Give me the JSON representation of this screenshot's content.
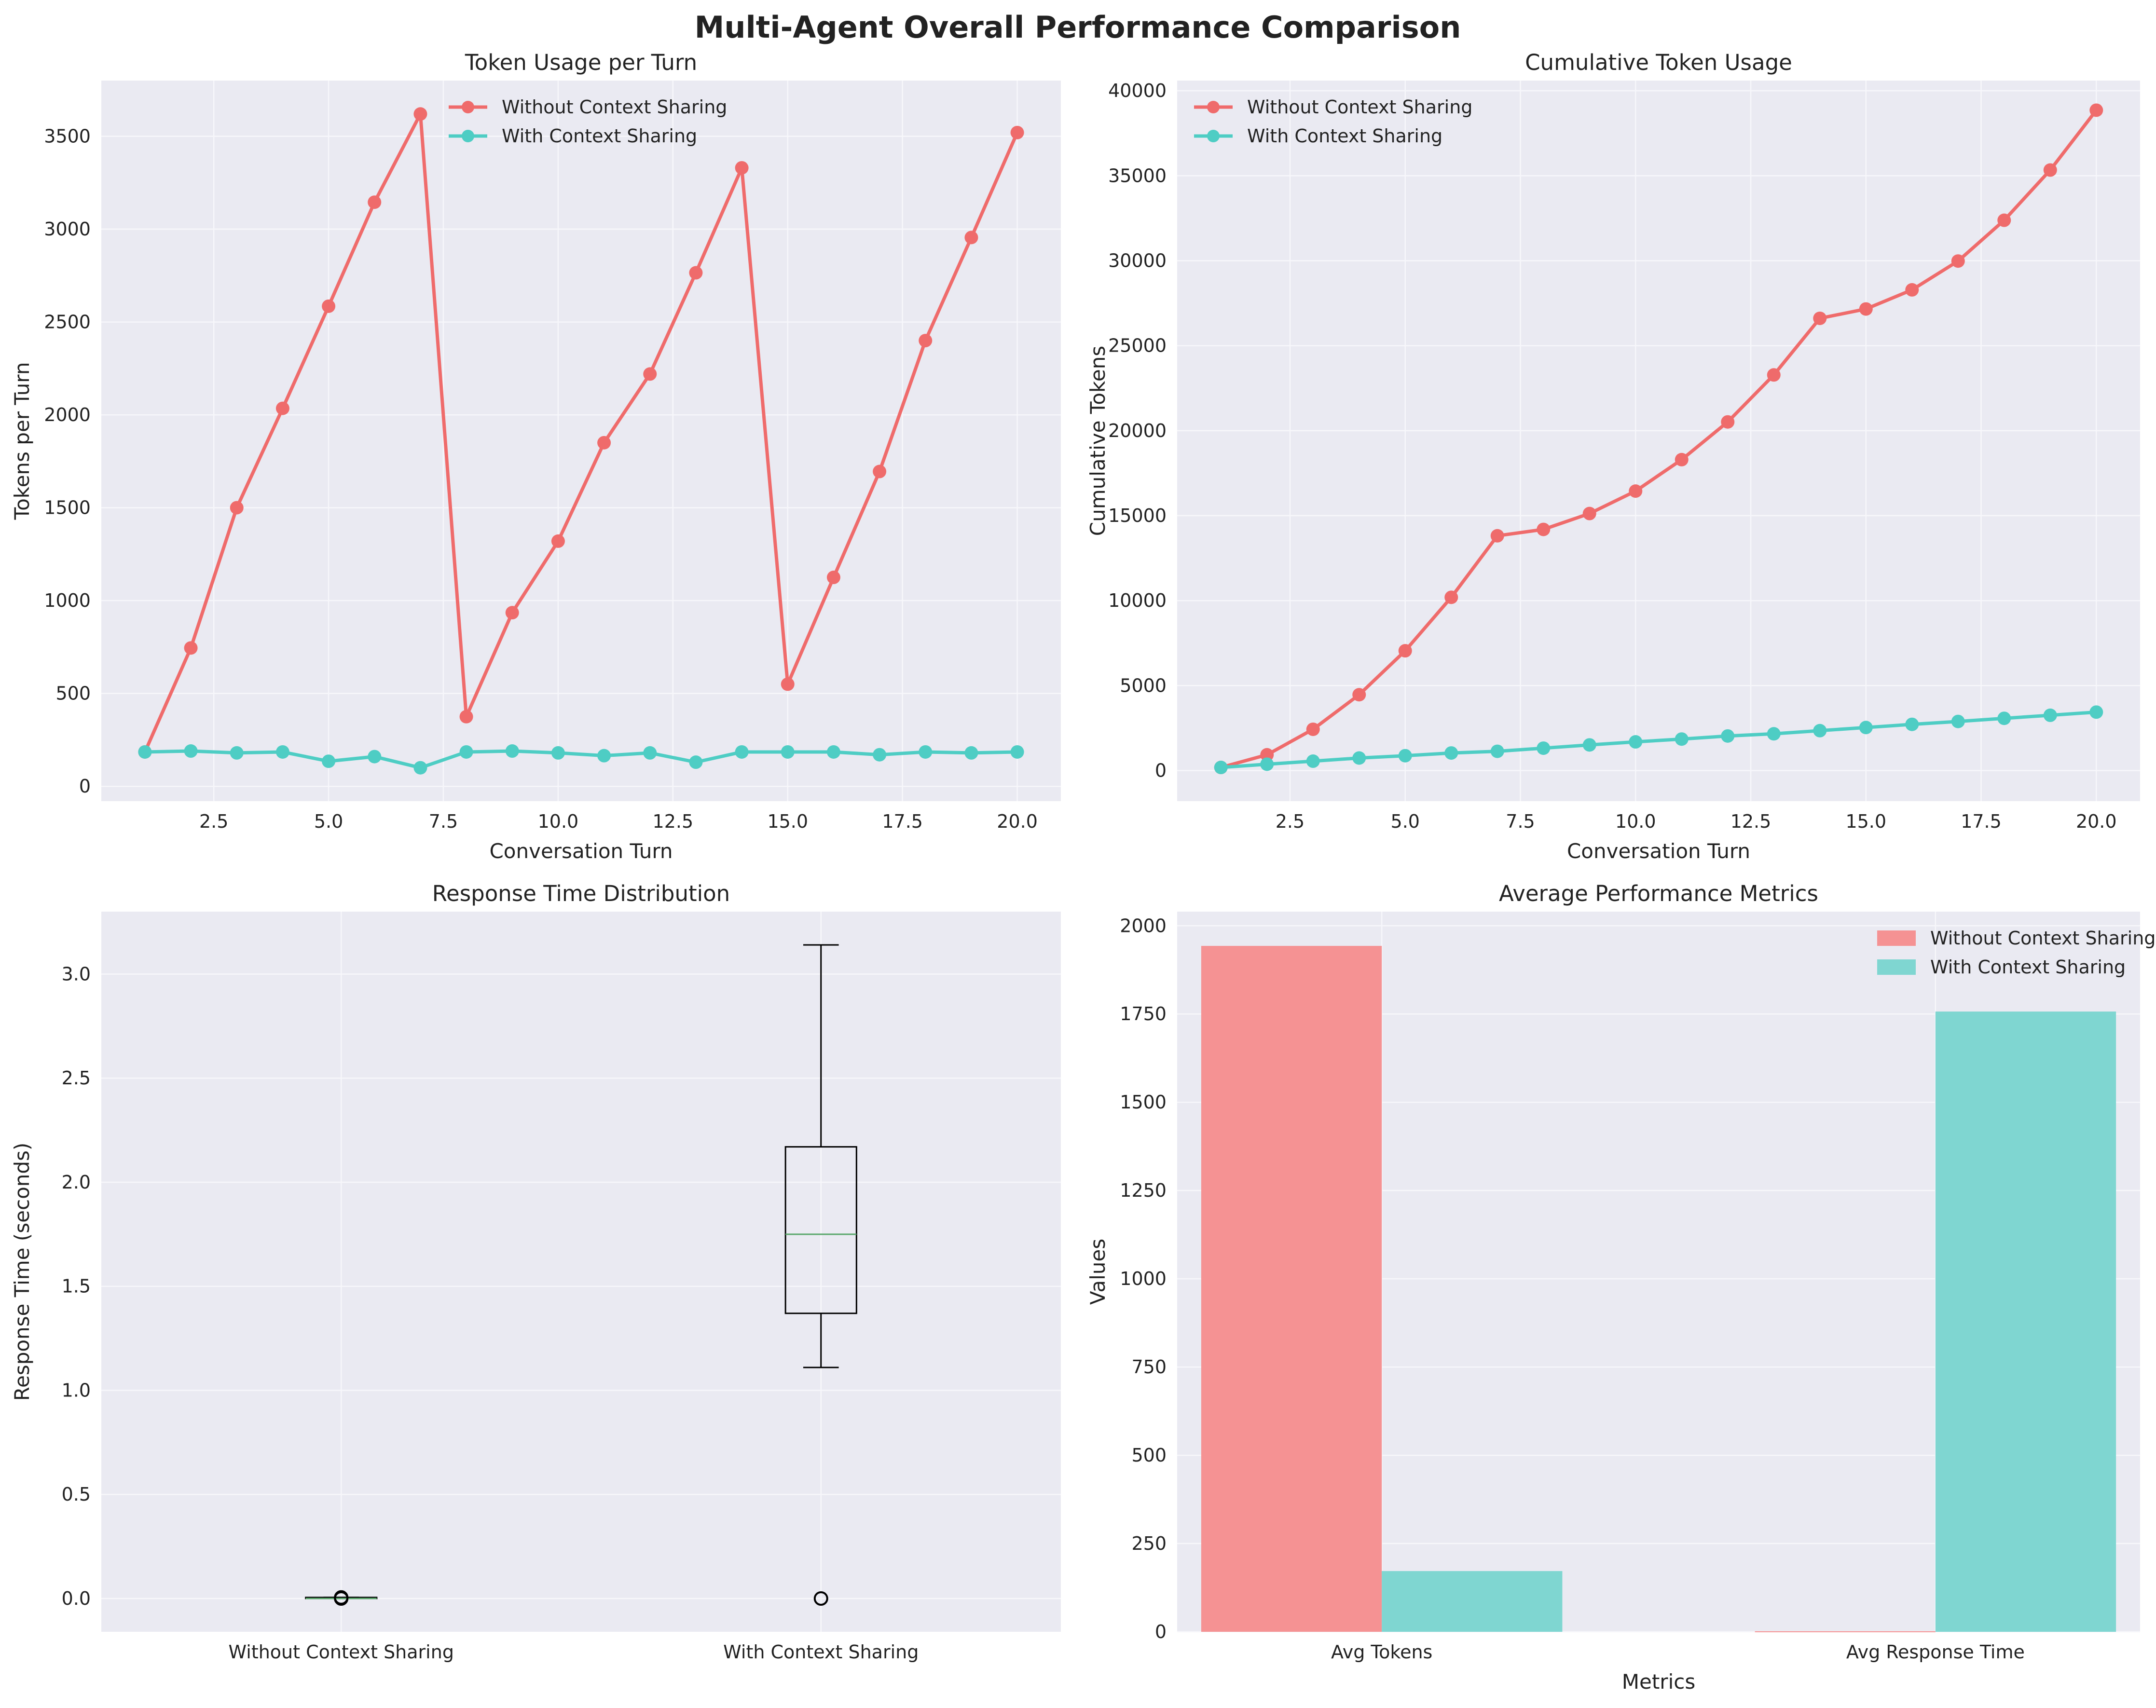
{
  "figure": {
    "title": "Multi-Agent Overall Performance Comparison",
    "colors": {
      "without": "#ef6b6b",
      "with": "#4ecdc4",
      "bar_without": "#f59293",
      "bar_with": "#7fd6d1",
      "axes_bg": "#eaeaf2",
      "grid": "#f7f7fb",
      "median": "#5aa86b"
    }
  },
  "chart_data": [
    {
      "type": "line",
      "title": "Token Usage per Turn",
      "xlabel": "Conversation Turn",
      "ylabel": "Tokens per Turn",
      "xlim": [
        0.05,
        20.95
      ],
      "ylim": [
        -80,
        3800
      ],
      "xticks": [
        2.5,
        5.0,
        7.5,
        10.0,
        12.5,
        15.0,
        17.5,
        20.0
      ],
      "xtick_labels": [
        "2.5",
        "5.0",
        "7.5",
        "10.0",
        "12.5",
        "15.0",
        "17.5",
        "20.0"
      ],
      "yticks": [
        0,
        500,
        1000,
        1500,
        2000,
        2500,
        3000,
        3500
      ],
      "ytick_labels": [
        "0",
        "500",
        "1000",
        "1500",
        "2000",
        "2500",
        "3000",
        "3500"
      ],
      "legend_position": "upper-center",
      "grid": true,
      "x": [
        1,
        2,
        3,
        4,
        5,
        6,
        7,
        8,
        9,
        10,
        11,
        12,
        13,
        14,
        15,
        16,
        17,
        18,
        19,
        20
      ],
      "series": [
        {
          "name": "Without Context Sharing",
          "values": [
            185,
            745,
            1500,
            2035,
            2585,
            3145,
            3620,
            375,
            935,
            1320,
            1850,
            2220,
            2765,
            3330,
            550,
            1125,
            1695,
            2400,
            2955,
            3520
          ]
        },
        {
          "name": "With Context Sharing",
          "values": [
            185,
            190,
            180,
            185,
            135,
            160,
            100,
            185,
            190,
            180,
            165,
            180,
            130,
            185,
            185,
            185,
            170,
            185,
            180,
            185
          ]
        }
      ]
    },
    {
      "type": "line",
      "title": "Cumulative Token Usage",
      "xlabel": "Conversation Turn",
      "ylabel": "Cumulative Tokens",
      "xlim": [
        0.05,
        20.95
      ],
      "ylim": [
        -1800,
        40600
      ],
      "xticks": [
        2.5,
        5.0,
        7.5,
        10.0,
        12.5,
        15.0,
        17.5,
        20.0
      ],
      "xtick_labels": [
        "2.5",
        "5.0",
        "7.5",
        "10.0",
        "12.5",
        "15.0",
        "17.5",
        "20.0"
      ],
      "yticks": [
        0,
        5000,
        10000,
        15000,
        20000,
        25000,
        30000,
        35000,
        40000
      ],
      "ytick_labels": [
        "0",
        "5000",
        "10000",
        "15000",
        "20000",
        "25000",
        "30000",
        "35000",
        "40000"
      ],
      "legend_position": "upper-left",
      "grid": true,
      "x": [
        1,
        2,
        3,
        4,
        5,
        6,
        7,
        8,
        9,
        10,
        11,
        12,
        13,
        14,
        15,
        16,
        17,
        18,
        19,
        20
      ],
      "series": [
        {
          "name": "Without Context Sharing",
          "values": [
            185,
            930,
            2430,
            4465,
            7050,
            10195,
            13815,
            14190,
            15125,
            16445,
            18295,
            20515,
            23280,
            26610,
            27160,
            28285,
            29980,
            32380,
            35335,
            38855
          ]
        },
        {
          "name": "With Context Sharing",
          "values": [
            185,
            375,
            555,
            740,
            875,
            1035,
            1135,
            1320,
            1510,
            1690,
            1855,
            2035,
            2165,
            2350,
            2535,
            2720,
            2890,
            3075,
            3255,
            3440
          ]
        }
      ]
    },
    {
      "type": "box",
      "title": "Response Time Distribution",
      "xlabel": "",
      "ylabel": "Response Time (seconds)",
      "ylim": [
        -0.16,
        3.3
      ],
      "yticks": [
        0.0,
        0.5,
        1.0,
        1.5,
        2.0,
        2.5,
        3.0
      ],
      "ytick_labels": [
        "0.0",
        "0.5",
        "1.0",
        "1.5",
        "2.0",
        "2.5",
        "3.0"
      ],
      "grid": true,
      "categories": [
        "Without Context Sharing",
        "With Context Sharing"
      ],
      "boxes": [
        {
          "whisker_low": 0.0,
          "q1": 0.0,
          "median": 0.0,
          "q3": 0.005,
          "whisker_high": 0.005,
          "outliers": [
            0.0,
            0.005
          ]
        },
        {
          "whisker_low": 1.11,
          "q1": 1.37,
          "median": 1.75,
          "q3": 2.17,
          "whisker_high": 3.14,
          "outliers": [
            0.0
          ]
        }
      ]
    },
    {
      "type": "bar",
      "title": "Average Performance Metrics",
      "xlabel": "Metrics",
      "ylabel": "Values",
      "ylim": [
        0,
        2040
      ],
      "yticks": [
        0,
        250,
        500,
        750,
        1000,
        1250,
        1500,
        1750,
        2000
      ],
      "ytick_labels": [
        "0",
        "250",
        "500",
        "750",
        "1000",
        "1250",
        "1500",
        "1750",
        "2000"
      ],
      "legend_position": "upper-right",
      "grid": true,
      "categories": [
        "Avg Tokens",
        "Avg Response Time"
      ],
      "series": [
        {
          "name": "Without Context Sharing",
          "values": [
            1943,
            1.5
          ]
        },
        {
          "name": "With Context Sharing",
          "values": [
            172,
            1757
          ]
        }
      ]
    }
  ]
}
